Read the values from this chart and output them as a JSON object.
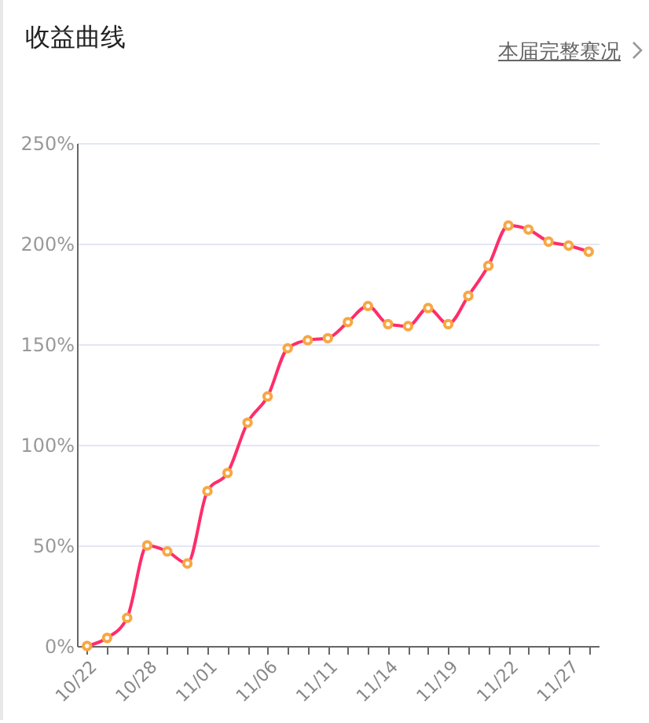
{
  "chart_data": {
    "type": "line",
    "title": "收益曲线",
    "annotations": [
      "本届完整赛况"
    ],
    "categories": [
      "10/22",
      null,
      null,
      "10/28",
      null,
      null,
      "11/01",
      null,
      null,
      "11/06",
      null,
      null,
      "11/11",
      null,
      null,
      "11/14",
      null,
      null,
      "11/19",
      null,
      null,
      "11/22",
      null,
      null,
      "11/27",
      null
    ],
    "series": [
      {
        "color": "#ff2d6a",
        "values": [
          0,
          4,
          14,
          50,
          47,
          41,
          77,
          86,
          111,
          124,
          148,
          152,
          153,
          161,
          169,
          160,
          159,
          168,
          160,
          174,
          189,
          209,
          207,
          201,
          199,
          196
        ]
      }
    ],
    "ylim": [
      0,
      250
    ],
    "yticks": [
      {
        "value": 0,
        "label": "0%"
      },
      {
        "value": 50,
        "label": "50%"
      },
      {
        "value": 100,
        "label": "100%"
      },
      {
        "value": 150,
        "label": "150%"
      },
      {
        "value": 200,
        "label": "200%"
      },
      {
        "value": 250,
        "label": "250%"
      }
    ],
    "grid": "y",
    "marker": "circle",
    "line_style": "solid"
  }
}
